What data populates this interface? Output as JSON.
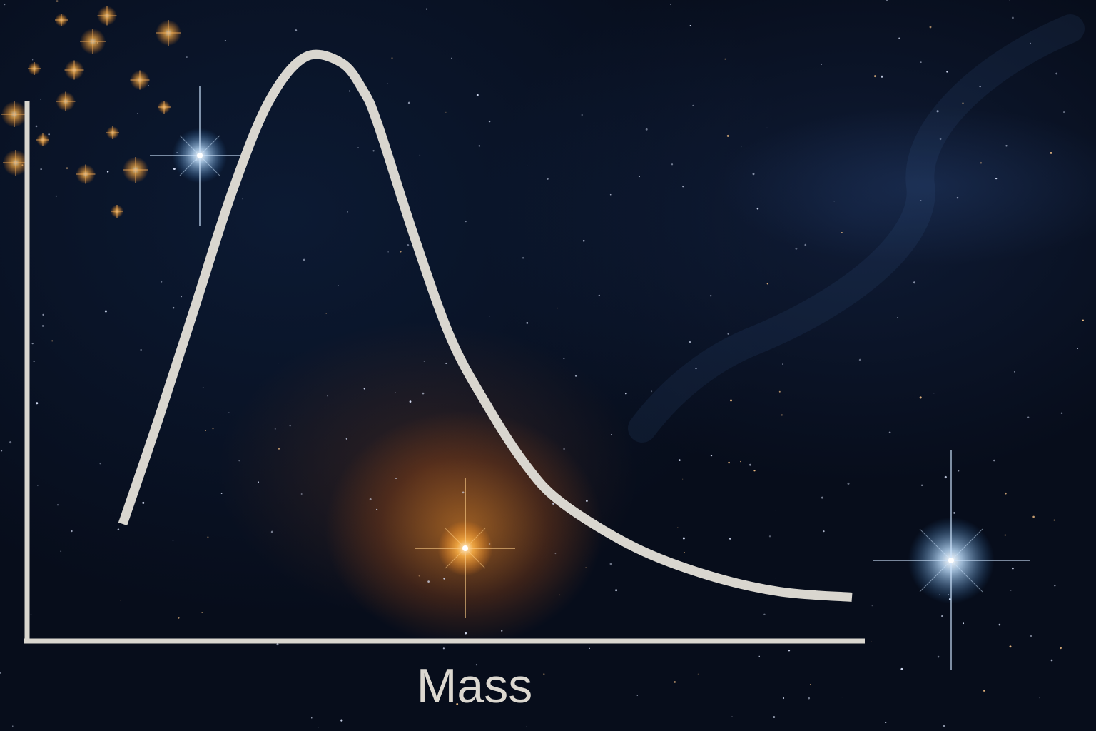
{
  "chart_data": {
    "type": "line",
    "title": "",
    "xlabel": "Mass",
    "ylabel": "",
    "grid": false,
    "legend": "none",
    "curve": {
      "description_shape": "right-skewed distribution",
      "x": [
        0.0,
        0.05,
        0.1,
        0.15,
        0.2,
        0.25,
        0.3,
        0.33,
        0.35,
        0.4,
        0.45,
        0.5,
        0.55,
        0.6,
        0.7,
        0.8,
        0.9,
        1.0
      ],
      "y": [
        0.17,
        0.36,
        0.56,
        0.76,
        0.92,
        1.0,
        0.99,
        0.94,
        0.88,
        0.68,
        0.5,
        0.38,
        0.28,
        0.21,
        0.13,
        0.08,
        0.05,
        0.04
      ]
    },
    "xlim": [
      0,
      1
    ],
    "ylim": [
      0,
      1
    ],
    "colors": {
      "axis": "#d9d6cf",
      "curve": "#d9d6cf",
      "label": "#dcd8d0"
    }
  }
}
